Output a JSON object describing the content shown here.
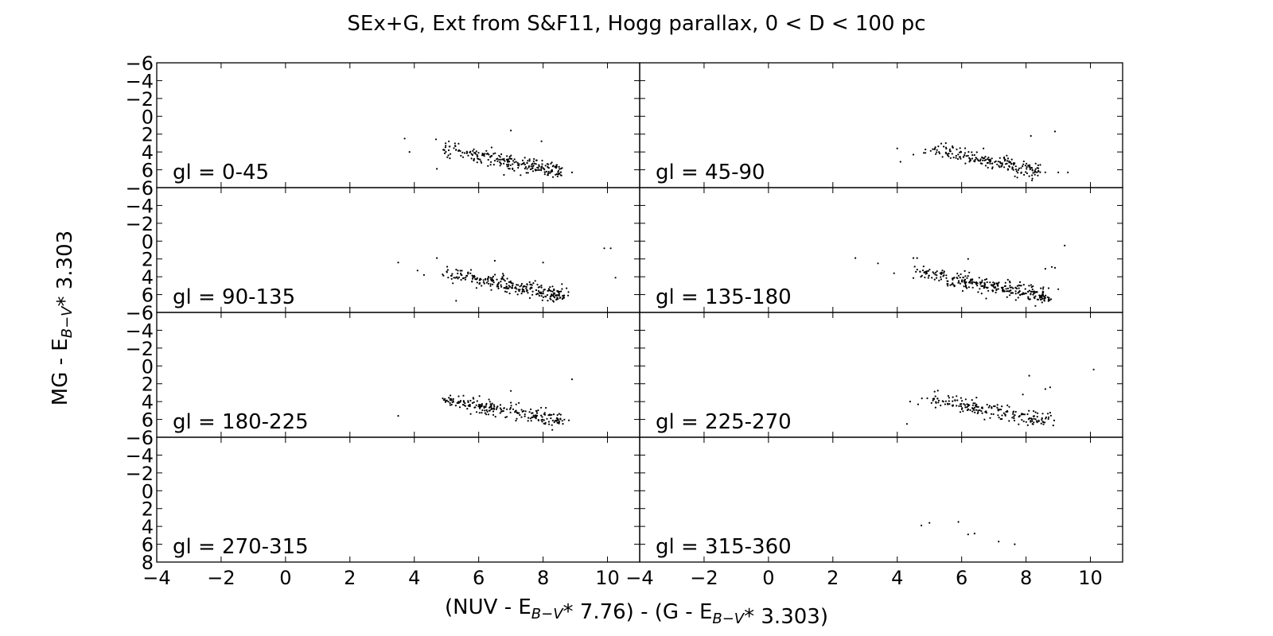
{
  "chart_data": {
    "type": "scatter",
    "title": "SEx+G, Ext from S&F11, Hogg parallax, 0 < D < 100 pc",
    "xlabel": {
      "parts": [
        {
          "t": "(NUV - E"
        },
        {
          "sub": "B−V"
        },
        {
          "t": "* 7.76) - (G - E"
        },
        {
          "sub": "B−V"
        },
        {
          "t": "* 3.303)"
        }
      ]
    },
    "ylabel": {
      "parts": [
        {
          "t": "MG - E"
        },
        {
          "sub": "B−V"
        },
        {
          "t": "* 3.303"
        }
      ]
    },
    "xlim": [
      -4,
      11
    ],
    "ylim": [
      8,
      -6
    ],
    "xticks": [
      -4,
      -2,
      0,
      2,
      4,
      6,
      8,
      10
    ],
    "yticks": [
      -6,
      -4,
      -2,
      0,
      2,
      4,
      6,
      8
    ],
    "grid": false,
    "point_color": "#000000",
    "panels": [
      {
        "label": "gl = 0-45",
        "clusters": [
          {
            "cx": [
              4.8,
              8.6
            ],
            "cy": [
              3.6,
              6.2
            ],
            "n": 240
          }
        ],
        "outliers": [
          [
            3.7,
            2.5
          ],
          [
            3.85,
            4.0
          ],
          [
            7.0,
            1.6
          ],
          [
            7.95,
            2.8
          ],
          [
            4.7,
            5.9
          ],
          [
            7.3,
            6.6
          ],
          [
            8.9,
            6.3
          ],
          [
            6.4,
            3.5
          ]
        ]
      },
      {
        "label": "gl = 45-90",
        "clusters": [
          {
            "cx": [
              5.0,
              8.4
            ],
            "cy": [
              3.6,
              6.2
            ],
            "n": 200
          }
        ],
        "outliers": [
          [
            4.0,
            3.6
          ],
          [
            4.1,
            5.1
          ],
          [
            8.9,
            1.7
          ],
          [
            8.15,
            2.2
          ],
          [
            9.0,
            6.3
          ],
          [
            9.3,
            6.3
          ],
          [
            8.3,
            5.3
          ],
          [
            4.5,
            4.3
          ]
        ]
      },
      {
        "label": "gl = 90-135",
        "clusters": [
          {
            "cx": [
              4.9,
              8.6
            ],
            "cy": [
              3.5,
              6.2
            ],
            "n": 270
          }
        ],
        "outliers": [
          [
            3.5,
            2.4
          ],
          [
            4.1,
            3.3
          ],
          [
            4.3,
            3.8
          ],
          [
            4.7,
            1.9
          ],
          [
            9.9,
            0.8
          ],
          [
            10.1,
            0.8
          ],
          [
            10.25,
            4.1
          ],
          [
            8.0,
            2.4
          ],
          [
            6.5,
            2.2
          ],
          [
            5.3,
            6.7
          ]
        ]
      },
      {
        "label": "gl = 135-180",
        "clusters": [
          {
            "cx": [
              4.6,
              8.7
            ],
            "cy": [
              3.4,
              6.3
            ],
            "n": 300
          }
        ],
        "outliers": [
          [
            2.7,
            1.9
          ],
          [
            3.4,
            2.5
          ],
          [
            3.9,
            3.6
          ],
          [
            4.5,
            1.9
          ],
          [
            8.9,
            3.0
          ],
          [
            9.2,
            0.5
          ],
          [
            8.8,
            2.9
          ],
          [
            9.0,
            5.4
          ],
          [
            8.6,
            3.1
          ],
          [
            6.2,
            2.0
          ]
        ]
      },
      {
        "label": "gl = 180-225",
        "clusters": [
          {
            "cx": [
              4.9,
              8.6
            ],
            "cy": [
              3.7,
              6.1
            ],
            "n": 230
          }
        ],
        "outliers": [
          [
            3.5,
            5.6
          ],
          [
            8.9,
            1.5
          ],
          [
            8.8,
            6.1
          ],
          [
            7.0,
            2.8
          ],
          [
            6.7,
            4.9
          ]
        ]
      },
      {
        "label": "gl = 225-270",
        "clusters": [
          {
            "cx": [
              4.9,
              8.8
            ],
            "cy": [
              3.6,
              6.3
            ],
            "n": 190
          }
        ],
        "outliers": [
          [
            4.3,
            6.5
          ],
          [
            4.4,
            4.0
          ],
          [
            8.1,
            1.1
          ],
          [
            8.75,
            2.4
          ],
          [
            10.1,
            0.4
          ],
          [
            8.6,
            2.6
          ],
          [
            7.9,
            3.2
          ],
          [
            8.2,
            6.5
          ]
        ]
      },
      {
        "label": "gl = 270-315",
        "clusters": [],
        "outliers": []
      },
      {
        "label": "gl = 315-360",
        "clusters": [],
        "outliers": [
          [
            4.75,
            3.9
          ],
          [
            5.0,
            3.6
          ],
          [
            5.9,
            3.5
          ],
          [
            6.2,
            4.9
          ],
          [
            6.4,
            4.8
          ],
          [
            7.15,
            5.7
          ],
          [
            7.65,
            6.0
          ]
        ]
      }
    ]
  }
}
